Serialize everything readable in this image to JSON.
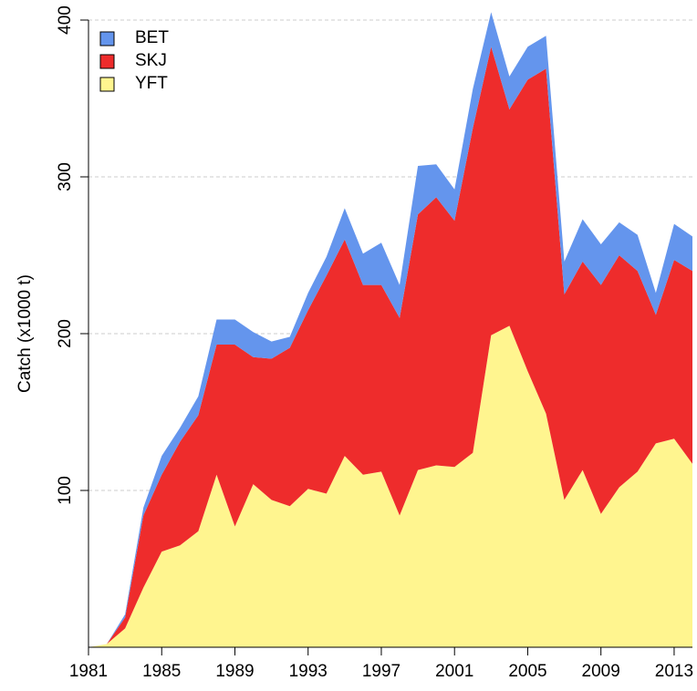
{
  "chart_data": {
    "type": "stacked-area",
    "y_label": "Catch (x1000 t)",
    "x": [
      1981,
      1982,
      1983,
      1984,
      1985,
      1986,
      1987,
      1988,
      1989,
      1990,
      1991,
      1992,
      1993,
      1994,
      1995,
      1996,
      1997,
      1998,
      1999,
      2000,
      2001,
      2002,
      2003,
      2004,
      2005,
      2006,
      2007,
      2008,
      2009,
      2010,
      2011,
      2012,
      2013,
      2014
    ],
    "series": [
      {
        "name": "BET",
        "color": "#6495ed",
        "values": [
          0,
          0,
          2,
          5,
          12,
          9,
          12,
          16,
          16,
          16,
          11,
          7,
          11,
          12,
          20,
          20,
          27,
          21,
          31,
          21,
          20,
          25,
          22,
          21,
          21,
          21,
          21,
          27,
          26,
          21,
          23,
          14,
          23,
          22
        ]
      },
      {
        "name": "SKJ",
        "color": "#ee2c2c",
        "values": [
          0,
          0,
          7,
          46,
          49,
          66,
          74,
          83,
          116,
          81,
          90,
          101,
          114,
          139,
          138,
          121,
          119,
          126,
          163,
          171,
          157,
          207,
          184,
          138,
          186,
          220,
          131,
          133,
          146,
          148,
          128,
          82,
          114,
          123
        ]
      },
      {
        "name": "YFT",
        "color": "#fff58f",
        "values": [
          0,
          2,
          12,
          38,
          61,
          65,
          74,
          110,
          77,
          104,
          94,
          90,
          101,
          98,
          122,
          110,
          112,
          84,
          113,
          116,
          115,
          124,
          199,
          205,
          176,
          149,
          94,
          113,
          85,
          102,
          112,
          130,
          133,
          117
        ]
      }
    ],
    "xlim": [
      1981,
      2014
    ],
    "xticks": [
      1981,
      1985,
      1989,
      1993,
      1997,
      2001,
      2005,
      2009,
      2013
    ],
    "ylim": [
      0,
      405
    ],
    "yticks": [
      100,
      200,
      300,
      400
    ],
    "grid": true,
    "legend": "top-left"
  }
}
